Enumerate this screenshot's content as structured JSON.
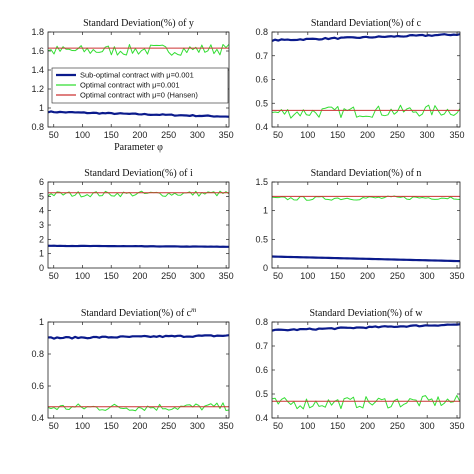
{
  "figure": {
    "legend": {
      "entries": [
        {
          "label": "Sub-optimal contract with μ=0.001",
          "color": "#0a1a8c"
        },
        {
          "label": "Optimal contract with μ=0.001",
          "color": "#33dd33"
        },
        {
          "label": "Optimal contract with μ=0 (Hansen)",
          "color": "#cc3333"
        }
      ]
    },
    "xlabel": "Parameter φ"
  },
  "chart_data": [
    {
      "type": "line",
      "title": "Standard Deviation(%) of y",
      "xlabel": "Parameter φ",
      "xlim": [
        40,
        355
      ],
      "ylim": [
        0.8,
        1.8
      ],
      "xticks": [
        50,
        100,
        150,
        200,
        250,
        300,
        350
      ],
      "yticks": [
        0.8,
        1,
        1.2,
        1.4,
        1.6,
        1.8
      ],
      "ytick_labels": [
        "0.8",
        "1",
        "1.2",
        "1.4",
        "1.6",
        "1.8"
      ],
      "series": [
        {
          "name": "Sub-optimal contract with μ=0.001",
          "color": "#0a1a8c",
          "width": 2.2,
          "noise": 0.006,
          "x": [
            40,
            355
          ],
          "y": [
            0.96,
            0.91
          ]
        },
        {
          "name": "Optimal contract with μ=0.001",
          "color": "#33dd33",
          "width": 1,
          "noise": 0.06,
          "x": [
            40,
            355
          ],
          "y": [
            1.6,
            1.62
          ]
        },
        {
          "name": "Optimal contract with μ=0 (Hansen)",
          "color": "#cc3333",
          "width": 1,
          "noise": 0,
          "x": [
            40,
            355
          ],
          "y": [
            1.63,
            1.63
          ]
        }
      ]
    },
    {
      "type": "line",
      "title": "Standard Deviation(%) of c",
      "xlim": [
        40,
        355
      ],
      "ylim": [
        0.4,
        0.8
      ],
      "xticks": [
        50,
        100,
        150,
        200,
        250,
        300,
        350
      ],
      "yticks": [
        0.4,
        0.5,
        0.6,
        0.7,
        0.8
      ],
      "ytick_labels": [
        "0.4",
        "0.5",
        "0.6",
        "0.7",
        "0.8"
      ],
      "series": [
        {
          "name": "Sub-optimal contract with μ=0.001",
          "color": "#0a1a8c",
          "width": 2.2,
          "noise": 0.003,
          "x": [
            40,
            355
          ],
          "y": [
            0.765,
            0.79
          ]
        },
        {
          "name": "Optimal contract with μ=0.001",
          "color": "#33dd33",
          "width": 1,
          "noise": 0.025,
          "x": [
            40,
            355
          ],
          "y": [
            0.46,
            0.47
          ]
        },
        {
          "name": "Optimal contract with μ=0 (Hansen)",
          "color": "#cc3333",
          "width": 1,
          "noise": 0,
          "x": [
            40,
            355
          ],
          "y": [
            0.47,
            0.47
          ]
        }
      ]
    },
    {
      "type": "line",
      "title": "Standard Deviation(%) of i",
      "xlim": [
        40,
        355
      ],
      "ylim": [
        0,
        6
      ],
      "xticks": [
        50,
        100,
        150,
        200,
        250,
        300,
        350
      ],
      "yticks": [
        0,
        1,
        2,
        3,
        4,
        5,
        6
      ],
      "ytick_labels": [
        "0",
        "1",
        "2",
        "3",
        "4",
        "5",
        "6"
      ],
      "series": [
        {
          "name": "Sub-optimal contract with μ=0.001",
          "color": "#0a1a8c",
          "width": 2.2,
          "noise": 0.01,
          "x": [
            40,
            355
          ],
          "y": [
            1.55,
            1.48
          ]
        },
        {
          "name": "Optimal contract with μ=0.001",
          "color": "#33dd33",
          "width": 1,
          "noise": 0.2,
          "x": [
            40,
            355
          ],
          "y": [
            5.15,
            5.2
          ]
        },
        {
          "name": "Optimal contract with μ=0 (Hansen)",
          "color": "#cc3333",
          "width": 1,
          "noise": 0,
          "x": [
            40,
            355
          ],
          "y": [
            5.25,
            5.25
          ]
        }
      ]
    },
    {
      "type": "line",
      "title": "Standard Deviation(%) of n",
      "xlim": [
        40,
        355
      ],
      "ylim": [
        0,
        1.5
      ],
      "xticks": [
        50,
        100,
        150,
        200,
        250,
        300,
        350
      ],
      "yticks": [
        0,
        0.5,
        1,
        1.5
      ],
      "ytick_labels": [
        "0",
        "0.5",
        "1",
        "1.5"
      ],
      "series": [
        {
          "name": "Sub-optimal contract with μ=0.001",
          "color": "#0a1a8c",
          "width": 2.2,
          "noise": 0,
          "x": [
            40,
            355
          ],
          "y": [
            0.2,
            0.12
          ]
        },
        {
          "name": "Optimal contract with μ=0.001",
          "color": "#33dd33",
          "width": 1,
          "noise": 0.035,
          "x": [
            40,
            355
          ],
          "y": [
            1.21,
            1.23
          ]
        },
        {
          "name": "Optimal contract with μ=0 (Hansen)",
          "color": "#cc3333",
          "width": 1,
          "noise": 0,
          "x": [
            40,
            355
          ],
          "y": [
            1.25,
            1.25
          ]
        }
      ]
    },
    {
      "type": "line",
      "title": "Standard Deviation(%) of c",
      "title_sup": "m",
      "xlim": [
        40,
        355
      ],
      "ylim": [
        0.4,
        1.0
      ],
      "xticks": [
        50,
        100,
        150,
        200,
        250,
        300,
        350
      ],
      "yticks": [
        0.4,
        0.6,
        0.8,
        1
      ],
      "ytick_labels": [
        "0.4",
        "0.6",
        "0.8",
        "1"
      ],
      "series": [
        {
          "name": "Sub-optimal contract with μ=0.001",
          "color": "#0a1a8c",
          "width": 2.2,
          "noise": 0.005,
          "x": [
            40,
            355
          ],
          "y": [
            0.9,
            0.915
          ]
        },
        {
          "name": "Optimal contract with μ=0.001",
          "color": "#33dd33",
          "width": 1,
          "noise": 0.025,
          "x": [
            40,
            355
          ],
          "y": [
            0.465,
            0.47
          ]
        },
        {
          "name": "Optimal contract with μ=0 (Hansen)",
          "color": "#cc3333",
          "width": 1,
          "noise": 0,
          "x": [
            40,
            355
          ],
          "y": [
            0.47,
            0.47
          ]
        }
      ]
    },
    {
      "type": "line",
      "title": "Standard Deviation(%) of w",
      "xlim": [
        40,
        355
      ],
      "ylim": [
        0.4,
        0.8
      ],
      "xticks": [
        50,
        100,
        150,
        200,
        250,
        300,
        350
      ],
      "yticks": [
        0.4,
        0.5,
        0.6,
        0.7,
        0.8
      ],
      "ytick_labels": [
        "0.4",
        "0.5",
        "0.6",
        "0.7",
        "0.8"
      ],
      "series": [
        {
          "name": "Sub-optimal contract with μ=0.001",
          "color": "#0a1a8c",
          "width": 2.2,
          "noise": 0.003,
          "x": [
            40,
            355
          ],
          "y": [
            0.765,
            0.79
          ]
        },
        {
          "name": "Optimal contract with μ=0.001",
          "color": "#33dd33",
          "width": 1,
          "noise": 0.025,
          "x": [
            40,
            355
          ],
          "y": [
            0.46,
            0.47
          ]
        },
        {
          "name": "Optimal contract with μ=0 (Hansen)",
          "color": "#cc3333",
          "width": 1,
          "noise": 0,
          "x": [
            40,
            355
          ],
          "y": [
            0.47,
            0.47
          ]
        }
      ]
    }
  ]
}
